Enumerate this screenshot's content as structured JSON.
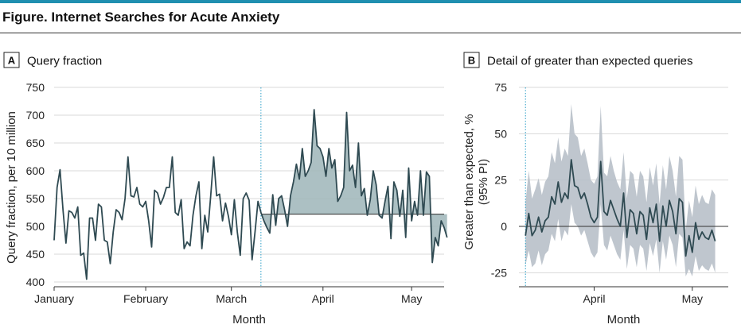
{
  "figure_title": "Figure. Internet Searches for Acute Anxiety",
  "colors": {
    "accent_bar": "#1f8fb0",
    "line": "#2f4a52",
    "fill_above": "#9db5b8",
    "fill_below": "#9db5b8",
    "band": "#b8c0c9",
    "marker": "#2b9ec7"
  },
  "chart_data": [
    {
      "panel": "A",
      "title": "Query fraction",
      "type": "line",
      "xlabel": "Month",
      "ylabel": "Query fraction, per 10 million",
      "xlim": [
        0,
        132
      ],
      "ylim": [
        390,
        750
      ],
      "yticks": [
        400,
        450,
        500,
        550,
        600,
        650,
        700,
        750
      ],
      "xticks": [
        {
          "day": 0,
          "label": "January"
        },
        {
          "day": 31,
          "label": "February"
        },
        {
          "day": 60,
          "label": "March"
        },
        {
          "day": 91,
          "label": "April"
        },
        {
          "day": 121,
          "label": "May"
        }
      ],
      "marker_day": 70,
      "expected_value": 522,
      "grid": "horizontal",
      "values": [
        475,
        570,
        602,
        530,
        470,
        528,
        525,
        515,
        535,
        448,
        452,
        405,
        515,
        515,
        475,
        540,
        535,
        475,
        472,
        433,
        490,
        530,
        525,
        512,
        550,
        625,
        555,
        553,
        570,
        540,
        535,
        545,
        510,
        463,
        565,
        560,
        540,
        552,
        570,
        570,
        625,
        525,
        520,
        548,
        460,
        472,
        465,
        520,
        555,
        580,
        460,
        520,
        490,
        555,
        625,
        555,
        558,
        510,
        542,
        518,
        485,
        548,
        490,
        448,
        550,
        560,
        547,
        440,
        490,
        545,
        525,
        510,
        498,
        488,
        557,
        502,
        550,
        555,
        530,
        500,
        555,
        580,
        612,
        585,
        640,
        590,
        600,
        615,
        710,
        645,
        640,
        625,
        590,
        640,
        605,
        620,
        545,
        555,
        570,
        705,
        600,
        610,
        570,
        650,
        555,
        568,
        520,
        548,
        600,
        575,
        520,
        515,
        545,
        572,
        478,
        580,
        565,
        518,
        565,
        480,
        605,
        510,
        545,
        520,
        600,
        520,
        598,
        590,
        435,
        480,
        465,
        510,
        498,
        480
      ]
    },
    {
      "panel": "B",
      "title": "Detail of greater than expected queries",
      "type": "line",
      "xlabel": "Month",
      "ylabel_lines": [
        "Greater than expected, %",
        "(95% PI)"
      ],
      "xlim": [
        68,
        132
      ],
      "ylim": [
        -27,
        75
      ],
      "yticks": [
        -25,
        0,
        25,
        50,
        75
      ],
      "xticks": [
        {
          "day": 91,
          "label": "April"
        },
        {
          "day": 121,
          "label": "May"
        }
      ],
      "marker_day": 70,
      "grid": "horizontal",
      "x": [
        70,
        71,
        72,
        73,
        74,
        75,
        76,
        77,
        78,
        79,
        80,
        81,
        82,
        83,
        84,
        85,
        86,
        87,
        88,
        89,
        90,
        91,
        92,
        93,
        94,
        95,
        96,
        97,
        98,
        99,
        100,
        101,
        102,
        103,
        104,
        105,
        106,
        107,
        108,
        109,
        110,
        111,
        112,
        113,
        114,
        115,
        116,
        117,
        118,
        119,
        120,
        121,
        122,
        123,
        124,
        125,
        126,
        127,
        128
      ],
      "values": [
        -5,
        7,
        -5,
        -2,
        5,
        -3,
        3,
        5,
        16,
        12,
        24,
        13,
        18,
        15,
        36,
        22,
        21,
        15,
        18,
        12,
        5,
        2,
        5,
        35,
        8,
        6,
        14,
        9,
        4,
        0,
        18,
        -6,
        9,
        7,
        -4,
        8,
        6,
        -7,
        10,
        2,
        12,
        -8,
        11,
        0,
        14,
        8,
        -4,
        15,
        13,
        -16,
        -5,
        -14,
        2,
        -7,
        -3,
        -6,
        -7,
        -2,
        -8
      ],
      "upper": [
        13,
        30,
        15,
        20,
        26,
        17,
        24,
        27,
        40,
        34,
        48,
        35,
        42,
        38,
        66,
        50,
        48,
        38,
        42,
        34,
        25,
        23,
        27,
        65,
        29,
        27,
        38,
        30,
        24,
        20,
        40,
        15,
        30,
        28,
        16,
        30,
        27,
        13,
        32,
        22,
        34,
        12,
        33,
        20,
        38,
        30,
        16,
        38,
        36,
        -2,
        14,
        5,
        22,
        12,
        17,
        13,
        12,
        20,
        17
      ],
      "lower": [
        -21,
        -13,
        -22,
        -20,
        -13,
        -21,
        -15,
        -13,
        -4,
        -8,
        4,
        -8,
        -2,
        -5,
        12,
        2,
        0,
        -5,
        -2,
        -8,
        -14,
        -17,
        -14,
        12,
        -10,
        -13,
        -5,
        -10,
        -15,
        -18,
        -2,
        -23,
        -10,
        -12,
        -22,
        -10,
        -12,
        -24,
        -9,
        -16,
        -7,
        -25,
        -8,
        -18,
        -5,
        -10,
        -22,
        -4,
        -6,
        -27,
        -23,
        -27,
        -16,
        -24,
        -21,
        -23,
        -24,
        -20,
        -25
      ]
    }
  ]
}
